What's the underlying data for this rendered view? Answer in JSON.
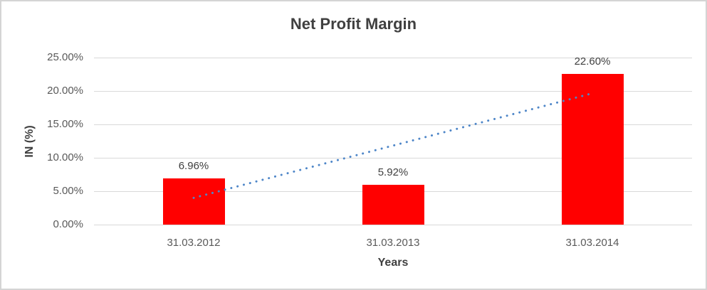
{
  "window": {
    "background": "#ffffff",
    "border_color": "#d4d4d4"
  },
  "chart_data": {
    "type": "bar",
    "title": "Net Profit Margin",
    "xlabel": "Years",
    "ylabel": "IN (%)",
    "categories": [
      "31.03.2012",
      "31.03.2013",
      "31.03.2014"
    ],
    "series": [
      {
        "name": "Net Profit Margin",
        "color": "#ff0000",
        "values": [
          6.96,
          5.92,
          22.6
        ],
        "data_labels": [
          "6.96%",
          "5.92%",
          "22.60%"
        ]
      }
    ],
    "ylim": [
      0,
      25
    ],
    "yticks": [
      0,
      5,
      10,
      15,
      20,
      25
    ],
    "ytick_labels": [
      "0.00%",
      "5.00%",
      "10.00%",
      "15.00%",
      "20.00%",
      "25.00%"
    ],
    "grid": "horizontal",
    "gridline_color": "#d9d9d9",
    "legend": "none",
    "trendline": {
      "type": "linear",
      "style": "dotted",
      "color": "#4e86c8",
      "y_start": 4.0,
      "y_end": 19.65
    },
    "text_colors": {
      "title": "#404040",
      "axis_title": "#404040",
      "tick": "#595959",
      "data_label": "#404040"
    }
  }
}
